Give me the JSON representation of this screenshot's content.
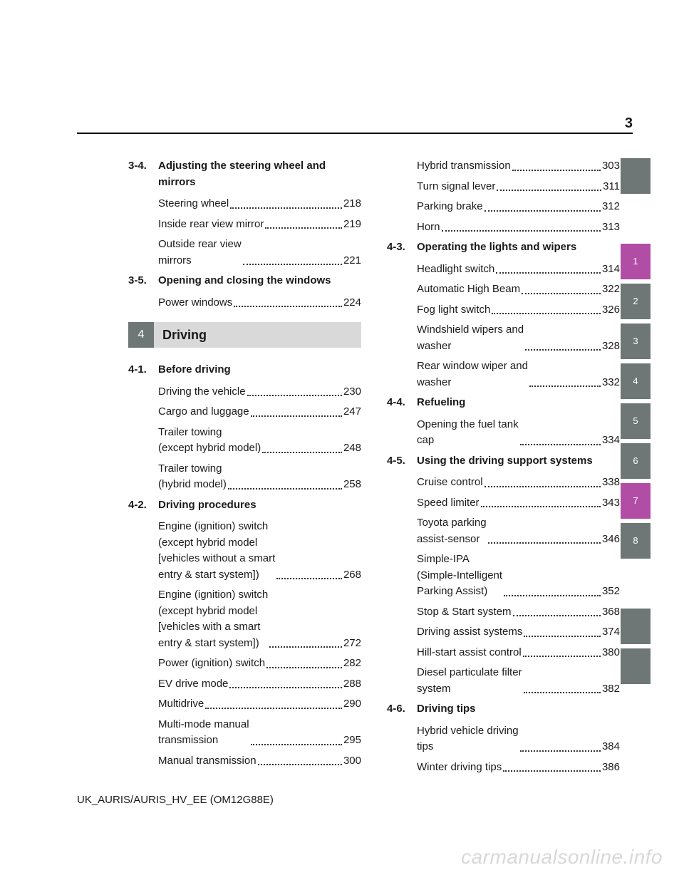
{
  "page_number": "3",
  "footer": "UK_AURIS/AURIS_HV_EE (OM12G88E)",
  "watermark": "carmanualsonline.info",
  "left_column": {
    "sections": [
      {
        "num": "3-4.",
        "title": "Adjusting the steering wheel and mirrors",
        "entries": [
          {
            "label": "Steering wheel",
            "page": "218"
          },
          {
            "label": "Inside rear view mirror",
            "page": "219"
          },
          {
            "label": "Outside rear view\nmirrors",
            "page": "221"
          }
        ]
      },
      {
        "num": "3-5.",
        "title": "Opening and closing the windows",
        "entries": [
          {
            "label": "Power windows",
            "page": "224"
          }
        ]
      }
    ],
    "chapter": {
      "num": "4",
      "title": "Driving"
    },
    "sections2": [
      {
        "num": "4-1.",
        "title": "Before driving",
        "entries": [
          {
            "label": "Driving the vehicle",
            "page": "230"
          },
          {
            "label": "Cargo and luggage",
            "page": "247"
          },
          {
            "label": "Trailer towing\n(except hybrid model)",
            "page": "248"
          },
          {
            "label": "Trailer towing\n(hybrid model)",
            "page": "258"
          }
        ]
      },
      {
        "num": "4-2.",
        "title": "Driving procedures",
        "entries": [
          {
            "label": "Engine (ignition) switch\n(except hybrid model\n[vehicles without a smart\nentry & start system])",
            "page": "268"
          },
          {
            "label": "Engine (ignition) switch\n(except hybrid model\n[vehicles with a smart\nentry & start system])",
            "page": "272"
          },
          {
            "label": "Power (ignition) switch",
            "page": "282"
          },
          {
            "label": "EV drive mode",
            "page": "288"
          },
          {
            "label": "Multidrive",
            "page": "290"
          },
          {
            "label": "Multi-mode manual\ntransmission",
            "page": "295"
          },
          {
            "label": "Manual transmission",
            "page": "300"
          }
        ]
      }
    ]
  },
  "right_column": {
    "preentries": [
      {
        "label": "Hybrid transmission",
        "page": "303"
      },
      {
        "label": "Turn signal lever",
        "page": "311"
      },
      {
        "label": "Parking brake",
        "page": "312"
      },
      {
        "label": "Horn",
        "page": "313"
      }
    ],
    "sections": [
      {
        "num": "4-3.",
        "title": "Operating the lights and wipers",
        "entries": [
          {
            "label": "Headlight switch",
            "page": "314"
          },
          {
            "label": "Automatic High Beam",
            "page": "322"
          },
          {
            "label": "Fog light switch",
            "page": "326"
          },
          {
            "label": "Windshield wipers and\nwasher",
            "page": "328"
          },
          {
            "label": "Rear window wiper and\nwasher",
            "page": "332"
          }
        ]
      },
      {
        "num": "4-4.",
        "title": "Refueling",
        "entries": [
          {
            "label": "Opening the fuel tank\ncap",
            "page": "334"
          }
        ]
      },
      {
        "num": "4-5.",
        "title": "Using the driving support systems",
        "entries": [
          {
            "label": "Cruise control",
            "page": "338"
          },
          {
            "label": "Speed limiter",
            "page": "343"
          },
          {
            "label": "Toyota parking\nassist-sensor",
            "page": "346"
          },
          {
            "label": "Simple-IPA\n(Simple-Intelligent\nParking Assist)",
            "page": "352"
          },
          {
            "label": "Stop & Start system",
            "page": "368"
          },
          {
            "label": "Driving assist systems",
            "page": "374"
          },
          {
            "label": "Hill-start assist control",
            "page": "380"
          },
          {
            "label": "Diesel particulate filter\nsystem",
            "page": "382"
          }
        ]
      },
      {
        "num": "4-6.",
        "title": "Driving tips",
        "entries": [
          {
            "label": "Hybrid vehicle driving\ntips",
            "page": "384"
          },
          {
            "label": "Winter driving tips",
            "page": "386"
          }
        ]
      }
    ]
  },
  "side_tabs": [
    {
      "label": "",
      "style": "blank"
    },
    {
      "label": "1",
      "style": "magenta",
      "spacer_before": true
    },
    {
      "label": "2",
      "style": "gray"
    },
    {
      "label": "3",
      "style": "gray"
    },
    {
      "label": "4",
      "style": "gray"
    },
    {
      "label": "5",
      "style": "gray"
    },
    {
      "label": "6",
      "style": "gray"
    },
    {
      "label": "7",
      "style": "magenta"
    },
    {
      "label": "8",
      "style": "gray"
    },
    {
      "label": "",
      "style": "blank",
      "spacer_before": true
    },
    {
      "label": "",
      "style": "blank"
    }
  ]
}
